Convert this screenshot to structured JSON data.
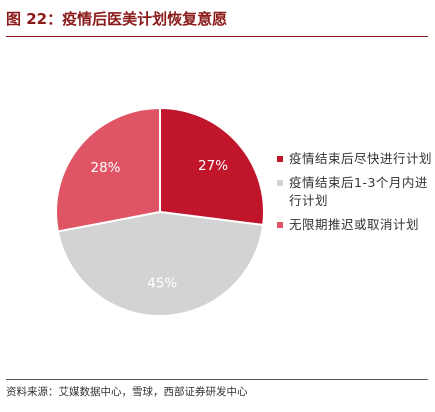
{
  "figure_title": "图 22：疫情后医美计划恢复意愿",
  "source": "资料来源：艾媒数据中心，雪球，西部证券研发中心",
  "chart_data": {
    "type": "pie",
    "title": "",
    "slices": [
      {
        "label": "疫情结束后尽快进行计划",
        "value": 27,
        "value_label": "27%",
        "color": "#c0152b"
      },
      {
        "label": "疫情结束后1-3个月内进行计划",
        "value": 45,
        "value_label": "45%",
        "color": "#d3d3d3"
      },
      {
        "label": "无限期推迟或取消计划",
        "value": 28,
        "value_label": "28%",
        "color": "#e05565"
      }
    ],
    "start_angle": "12 o'clock",
    "direction": "clockwise",
    "legend_position": "right"
  }
}
